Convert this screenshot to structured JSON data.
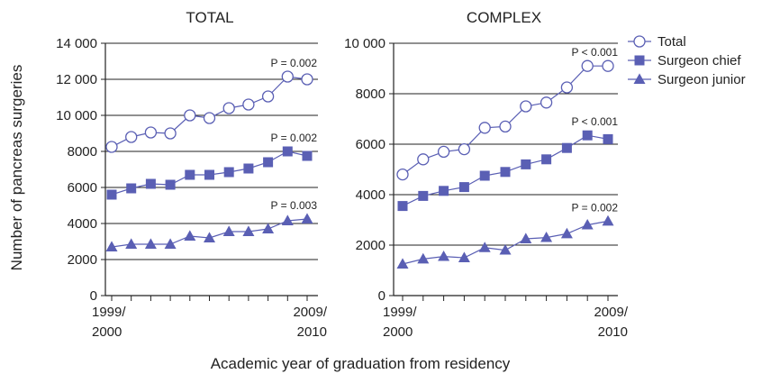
{
  "colors": {
    "series": "#5a5fb4",
    "grid": "#222222"
  },
  "ylabel": "Number of pancreas surgeries",
  "xlabel": "Academic year of graduation from residency",
  "legend": [
    {
      "name": "Total",
      "marker": "circle-open"
    },
    {
      "name": "Surgeon chief",
      "marker": "square"
    },
    {
      "name": "Surgeon junior",
      "marker": "triangle"
    }
  ],
  "chart_data": [
    {
      "type": "line",
      "title": "TOTAL",
      "xticks": [
        [
          "1999/",
          "2000"
        ],
        [
          "2009/",
          "2010"
        ]
      ],
      "yticks": [
        "0",
        "2000",
        "4000",
        "6000",
        "8000",
        "10 000",
        "12 000",
        "14 000"
      ],
      "ylim": [
        0,
        14000
      ],
      "x": [
        "1999/2000",
        "2000/2001",
        "2001/2002",
        "2002/2003",
        "2003/2004",
        "2004/2005",
        "2005/2006",
        "2006/2007",
        "2007/2008",
        "2008/2009",
        "2009/2010"
      ],
      "series": [
        {
          "name": "Total",
          "values": [
            8250,
            8800,
            9050,
            9000,
            10000,
            9850,
            10400,
            10600,
            11050,
            12150,
            12000
          ],
          "p_label": "P = 0.002"
        },
        {
          "name": "Surgeon chief",
          "values": [
            5600,
            5950,
            6200,
            6150,
            6700,
            6700,
            6850,
            7050,
            7400,
            8000,
            7750
          ],
          "p_label": "P = 0.002"
        },
        {
          "name": "Surgeon junior",
          "values": [
            2700,
            2850,
            2850,
            2850,
            3300,
            3200,
            3550,
            3550,
            3700,
            4150,
            4250
          ],
          "p_label": "P = 0.003"
        }
      ]
    },
    {
      "type": "line",
      "title": "COMPLEX",
      "xticks": [
        [
          "1999/",
          "2000"
        ],
        [
          "2009/",
          "2010"
        ]
      ],
      "yticks": [
        "0",
        "2000",
        "4000",
        "6000",
        "8000",
        "10 000"
      ],
      "ylim": [
        0,
        10000
      ],
      "x": [
        "1999/2000",
        "2000/2001",
        "2001/2002",
        "2002/2003",
        "2003/2004",
        "2004/2005",
        "2005/2006",
        "2006/2007",
        "2007/2008",
        "2008/2009",
        "2009/2010"
      ],
      "series": [
        {
          "name": "Total",
          "values": [
            4800,
            5400,
            5700,
            5800,
            6650,
            6700,
            7500,
            7650,
            8250,
            9100,
            9100
          ],
          "p_label": "P < 0.001"
        },
        {
          "name": "Surgeon chief",
          "values": [
            3550,
            3950,
            4150,
            4300,
            4750,
            4900,
            5200,
            5400,
            5850,
            6350,
            6200
          ],
          "p_label": "P < 0.001"
        },
        {
          "name": "Surgeon junior",
          "values": [
            1250,
            1450,
            1550,
            1500,
            1900,
            1800,
            2250,
            2300,
            2450,
            2800,
            2950
          ],
          "p_label": "P = 0.002"
        }
      ]
    }
  ]
}
